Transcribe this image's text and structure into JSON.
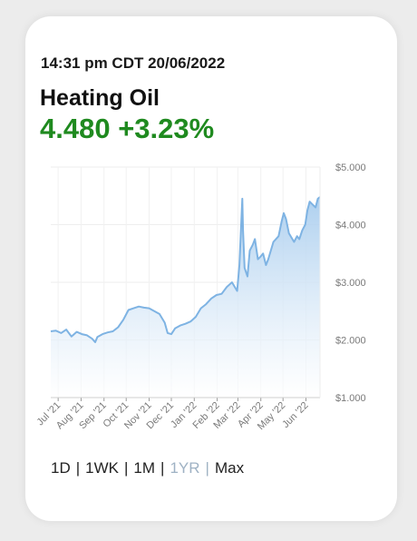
{
  "header": {
    "timestamp": "14:31 pm CDT 20/06/2022",
    "instrument": "Heating Oil",
    "price": "4.480",
    "change": "+3.23%",
    "change_color": "#1f8a1f"
  },
  "ranges": {
    "options": [
      "1D",
      "1WK",
      "1M",
      "1YR",
      "Max"
    ],
    "selected": "1YR"
  },
  "chart_data": {
    "type": "area",
    "title": "",
    "xlabel": "",
    "ylabel": "",
    "ylim": [
      1.0,
      5.0
    ],
    "y_ticks": [
      "$1.000",
      "$2.000",
      "$3.000",
      "$4.000",
      "$5.000"
    ],
    "x_ticks": [
      "Jul '21",
      "Aug '21",
      "Sep '21",
      "Oct '21",
      "Nov '21",
      "Dec '21",
      "Jan '22",
      "Feb '22",
      "Mar '22",
      "Apr '22",
      "May '22",
      "Jun '22"
    ],
    "y_axis_position": "right",
    "grid": true,
    "line_color": "#7eb3e3",
    "fill_color": "#a9cdee",
    "series": [
      {
        "x": [
          "2021-06-21",
          "2021-06-28",
          "2021-07-05",
          "2021-07-12",
          "2021-07-19",
          "2021-07-26",
          "2021-08-02",
          "2021-08-09",
          "2021-08-16",
          "2021-08-20",
          "2021-08-23",
          "2021-08-30",
          "2021-09-06",
          "2021-09-13",
          "2021-09-20",
          "2021-09-27",
          "2021-10-04",
          "2021-10-11",
          "2021-10-18",
          "2021-10-25",
          "2021-11-01",
          "2021-11-08",
          "2021-11-15",
          "2021-11-22",
          "2021-11-26",
          "2021-12-01",
          "2021-12-06",
          "2021-12-13",
          "2021-12-20",
          "2021-12-27",
          "2022-01-03",
          "2022-01-10",
          "2022-01-17",
          "2022-01-24",
          "2022-01-31",
          "2022-02-07",
          "2022-02-14",
          "2022-02-21",
          "2022-02-28",
          "2022-03-03",
          "2022-03-07",
          "2022-03-08",
          "2022-03-10",
          "2022-03-14",
          "2022-03-17",
          "2022-03-21",
          "2022-03-24",
          "2022-03-28",
          "2022-04-01",
          "2022-04-04",
          "2022-04-08",
          "2022-04-11",
          "2022-04-18",
          "2022-04-25",
          "2022-04-29",
          "2022-05-02",
          "2022-05-05",
          "2022-05-09",
          "2022-05-16",
          "2022-05-20",
          "2022-05-23",
          "2022-05-27",
          "2022-05-31",
          "2022-06-03",
          "2022-06-06",
          "2022-06-10",
          "2022-06-14",
          "2022-06-17",
          "2022-06-20"
        ],
        "y": [
          2.15,
          2.16,
          2.12,
          2.18,
          2.06,
          2.14,
          2.1,
          2.08,
          2.02,
          1.96,
          2.05,
          2.1,
          2.13,
          2.15,
          2.22,
          2.35,
          2.52,
          2.55,
          2.58,
          2.56,
          2.55,
          2.5,
          2.45,
          2.3,
          2.12,
          2.1,
          2.2,
          2.25,
          2.28,
          2.32,
          2.4,
          2.55,
          2.62,
          2.72,
          2.78,
          2.8,
          2.92,
          3.0,
          2.85,
          3.3,
          4.45,
          3.9,
          3.25,
          3.1,
          3.55,
          3.65,
          3.75,
          3.4,
          3.45,
          3.5,
          3.3,
          3.4,
          3.7,
          3.8,
          4.05,
          4.2,
          4.1,
          3.85,
          3.7,
          3.8,
          3.75,
          3.9,
          4.0,
          4.25,
          4.4,
          4.35,
          4.3,
          4.45,
          4.48
        ]
      }
    ]
  }
}
